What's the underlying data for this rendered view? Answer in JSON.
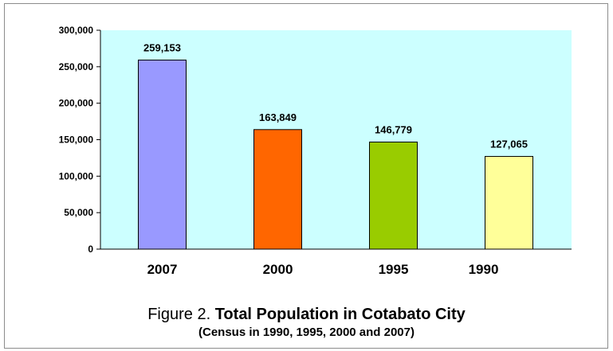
{
  "chart_data": {
    "type": "bar",
    "categories": [
      "2007",
      "2000",
      "1995",
      "1990"
    ],
    "values": [
      259153,
      163849,
      146779,
      127065
    ],
    "data_labels": [
      "259,153",
      "163,849",
      "146,779",
      "127,065"
    ],
    "bar_colors": [
      "#9999ff",
      "#ff6600",
      "#99cc00",
      "#ffff99"
    ],
    "plot_background": "#ccffff",
    "ylim": [
      0,
      300000
    ],
    "y_ticks": [
      0,
      50000,
      100000,
      150000,
      200000,
      250000,
      300000
    ],
    "y_tick_labels": [
      "0",
      "50,000",
      "100,000",
      "150,000",
      "200,000",
      "250,000",
      "300,000"
    ],
    "grid": false,
    "legend": "none",
    "xlabel": "",
    "ylabel": ""
  },
  "caption": {
    "prefix": "Figure 2. ",
    "title": "Total Population in Cotabato City",
    "subtitle": "(Census in 1990, 1995, 2000 and 2007)"
  }
}
